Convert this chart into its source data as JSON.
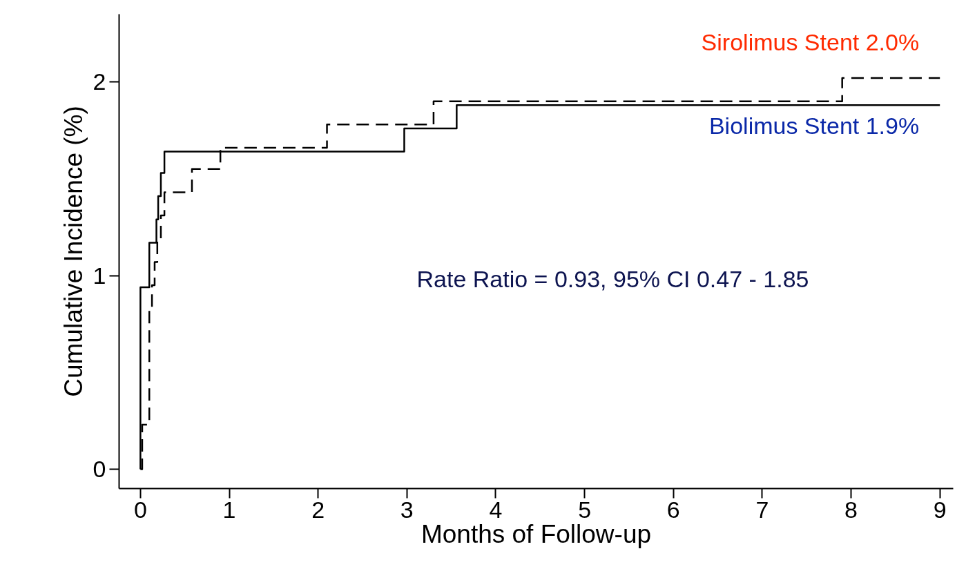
{
  "chart_data": {
    "type": "step",
    "xlabel": "Months of Follow-up",
    "ylabel": "Cumulative Incidence (%)",
    "series": [
      {
        "name": "Sirolimus Stent 2.0%",
        "color": "#000000",
        "line_style": "dashed",
        "x": [
          0,
          0.02,
          0.1,
          0.13,
          0.16,
          0.19,
          0.23,
          0.27,
          0.58,
          0.9,
          2.1,
          3.3,
          7.9,
          9
        ],
        "values": [
          0,
          0.23,
          0.83,
          0.95,
          1.07,
          1.19,
          1.31,
          1.43,
          1.55,
          1.66,
          1.78,
          1.9,
          2.02,
          2.02
        ]
      },
      {
        "name": "Biolimus Stent 1.9%",
        "color": "#000000",
        "line_style": "solid",
        "x": [
          0,
          0.0,
          0.1,
          0.18,
          0.2,
          0.23,
          0.27,
          2.97,
          3.56,
          9
        ],
        "values": [
          0,
          0.94,
          1.17,
          1.29,
          1.41,
          1.53,
          1.64,
          1.76,
          1.88,
          1.88
        ]
      }
    ],
    "annotations": [
      "Rate Ratio = 0.93, 95% CI 0.47 - 1.85"
    ],
    "xlim": [
      -0.24,
      9.15
    ],
    "ylim": [
      -0.1,
      2.35
    ],
    "xticks": [
      0,
      1,
      2,
      3,
      4,
      5,
      6,
      7,
      8,
      9
    ],
    "yticks": [
      0,
      1,
      2
    ]
  }
}
